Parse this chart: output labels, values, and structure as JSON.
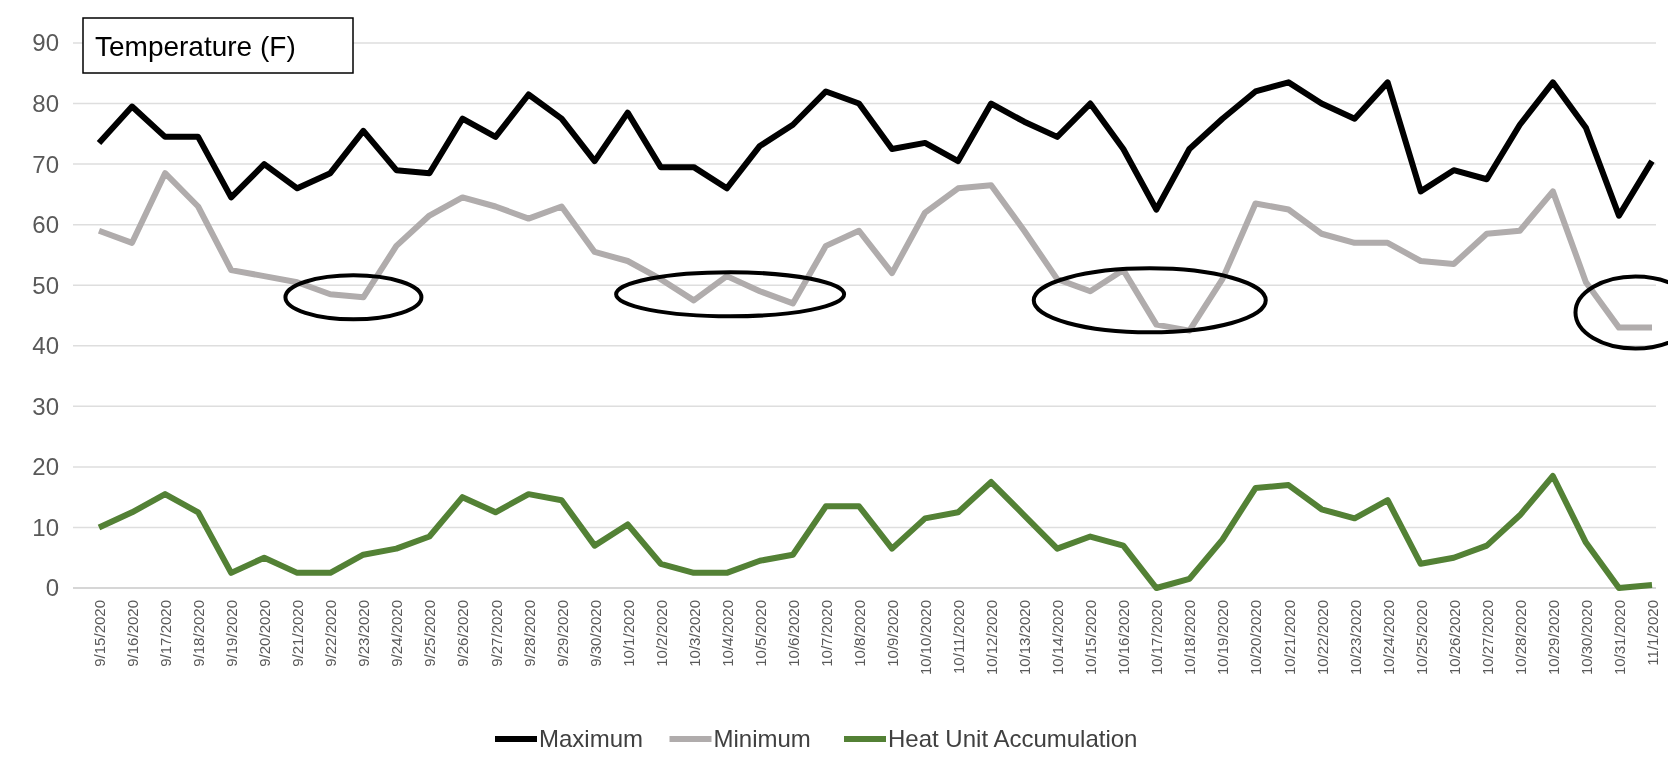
{
  "chart_data": {
    "type": "line",
    "title": "Temperature (F)",
    "categories": [
      "9/15/2020",
      "9/16/2020",
      "9/17/2020",
      "9/18/2020",
      "9/19/2020",
      "9/20/2020",
      "9/21/2020",
      "9/22/2020",
      "9/23/2020",
      "9/24/2020",
      "9/25/2020",
      "9/26/2020",
      "9/27/2020",
      "9/28/2020",
      "9/29/2020",
      "9/30/2020",
      "10/1/2020",
      "10/2/2020",
      "10/3/2020",
      "10/4/2020",
      "10/5/2020",
      "10/6/2020",
      "10/7/2020",
      "10/8/2020",
      "10/9/2020",
      "10/10/2020",
      "10/11/2020",
      "10/12/2020",
      "10/13/2020",
      "10/14/2020",
      "10/15/2020",
      "10/16/2020",
      "10/17/2020",
      "10/18/2020",
      "10/19/2020",
      "10/20/2020",
      "10/21/2020",
      "10/22/2020",
      "10/23/2020",
      "10/24/2020",
      "10/25/2020",
      "10/26/2020",
      "10/27/2020",
      "10/28/2020",
      "10/29/2020",
      "10/30/2020",
      "10/31/2020",
      "11/1/2020"
    ],
    "series": [
      {
        "name": "Maximum",
        "color": "#000000",
        "values": [
          73.5,
          79.5,
          74.5,
          74.5,
          64.5,
          70,
          66,
          68.5,
          75.5,
          69,
          68.5,
          77.5,
          74.5,
          81.5,
          77.5,
          70.5,
          78.5,
          69.5,
          69.5,
          66,
          73,
          76.5,
          82,
          80,
          72.5,
          73.5,
          70.5,
          80,
          77,
          74.5,
          80,
          72.5,
          62.5,
          72.5,
          77.5,
          82,
          83.5,
          80,
          77.5,
          83.5,
          65.5,
          69,
          67.5,
          76.5,
          83.5,
          76,
          61.5,
          70.5
        ]
      },
      {
        "name": "Minimum",
        "color": "#b0acac",
        "values": [
          59,
          57,
          68.5,
          63,
          52.5,
          51.5,
          50.5,
          48.5,
          48,
          56.5,
          61.5,
          64.5,
          63,
          61,
          63,
          55.5,
          54,
          51,
          47.5,
          51.5,
          49,
          47,
          56.5,
          59,
          52,
          62,
          66,
          66.5,
          59,
          51,
          49,
          52.5,
          43.5,
          42.5,
          51,
          63.5,
          62.5,
          58.5,
          57,
          57,
          54,
          53.5,
          58.5,
          59,
          65.5,
          50.5,
          43,
          43
        ]
      },
      {
        "name": "Heat Unit Accumulation",
        "color": "#538135",
        "values": [
          10,
          12.5,
          15.5,
          12.5,
          2.5,
          5,
          2.5,
          2.5,
          5.5,
          6.5,
          8.5,
          15,
          12.5,
          15.5,
          14.5,
          7,
          10.5,
          4,
          2.5,
          2.5,
          4.5,
          5.5,
          13.5,
          13.5,
          6.5,
          11.5,
          12.5,
          17.5,
          12,
          6.5,
          8.5,
          7,
          0,
          1.5,
          8,
          16.5,
          17,
          13,
          11.5,
          14.5,
          4,
          5,
          7,
          12,
          18.5,
          7.5,
          0,
          0.5
        ]
      }
    ],
    "ylim": [
      0,
      90
    ],
    "yticks": [
      0,
      10,
      20,
      30,
      40,
      50,
      60,
      70,
      80,
      90
    ],
    "grid": "y",
    "legend": "bottom",
    "marker": "none",
    "line_style": "solid"
  }
}
